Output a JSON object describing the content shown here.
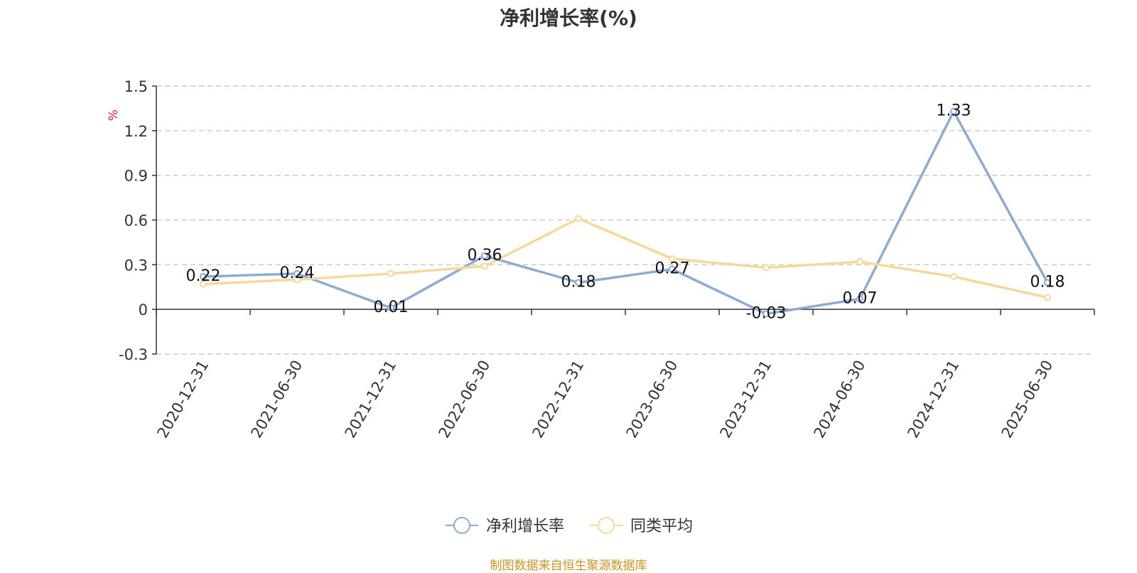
{
  "title": "净利增长率(%)",
  "source": "制图数据来自恒生聚源数据库",
  "chart_data": {
    "type": "line",
    "title": "净利增长率(%)",
    "ylabel": "%",
    "ylim": [
      -0.3,
      1.5
    ],
    "yticks": [
      "1.5",
      "1.2",
      "0.9",
      "0.6",
      "0.3",
      "0",
      "-0.3"
    ],
    "ytick_values": [
      1.5,
      1.2,
      0.9,
      0.6,
      0.3,
      0,
      -0.3
    ],
    "grid": true,
    "legend_position": "bottom-center",
    "categories": [
      "2020-12-31",
      "2021-06-30",
      "2021-12-31",
      "2022-06-30",
      "2022-12-31",
      "2023-06-30",
      "2023-12-31",
      "2024-06-30",
      "2024-12-31",
      "2025-06-30"
    ],
    "series": [
      {
        "name": "净利增长率",
        "color": "#8eabd6",
        "values": [
          0.22,
          0.24,
          0.01,
          0.36,
          0.18,
          0.27,
          -0.03,
          0.07,
          1.33,
          0.18
        ],
        "labels": [
          "0.22",
          "0.24",
          "0.01",
          "0.36",
          "0.18",
          "0.27",
          "-0.03",
          "0.07",
          "1.33",
          "0.18"
        ]
      },
      {
        "name": "同类平均",
        "color": "#f8d898",
        "values": [
          0.17,
          0.2,
          0.24,
          0.29,
          0.61,
          0.34,
          0.28,
          0.32,
          0.22,
          0.08
        ]
      }
    ]
  }
}
